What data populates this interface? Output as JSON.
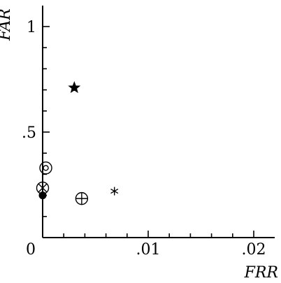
{
  "chart_data": {
    "type": "scatter",
    "xlabel": "FRR",
    "ylabel": "FAR",
    "xlim": [
      0,
      0.021
    ],
    "ylim": [
      0,
      1.1
    ],
    "x_ticks": [
      {
        "value": 0,
        "label": "0"
      },
      {
        "value": 0.01,
        "label": ".01"
      },
      {
        "value": 0.02,
        "label": ".02"
      }
    ],
    "y_ticks": [
      {
        "value": 0.5,
        "label": ".5"
      },
      {
        "value": 1,
        "label": "1"
      }
    ],
    "grid": false,
    "points": [
      {
        "x": 0.003,
        "y": 0.71,
        "marker": "star"
      },
      {
        "x": 0.0003,
        "y": 0.33,
        "marker": "circled-dot"
      },
      {
        "x": 0.0,
        "y": 0.235,
        "marker": "circled-cross"
      },
      {
        "x": 0.0,
        "y": 0.2,
        "marker": "filled-circle"
      },
      {
        "x": 0.0037,
        "y": 0.185,
        "marker": "circled-plus"
      },
      {
        "x": 0.0068,
        "y": 0.22,
        "marker": "asterisk"
      }
    ]
  }
}
